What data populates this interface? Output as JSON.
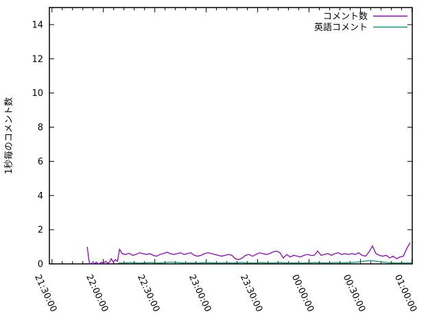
{
  "chart_data": {
    "type": "line",
    "title": "",
    "xlabel": "",
    "ylabel": "1秒毎のコメント数",
    "grid": false,
    "legend_position": "top-right-inside",
    "x_tick_labels": [
      "21:30:00",
      "22:00:00",
      "22:30:00",
      "23:00:00",
      "23:30:00",
      "00:00:00",
      "00:30:00",
      "01:00:00"
    ],
    "x_tick_minutes": [
      0,
      30,
      60,
      90,
      120,
      150,
      180,
      210
    ],
    "x_minor_step_minutes": 6,
    "xlim_minutes": [
      -1.5,
      210.2
    ],
    "y_tick_labels": [
      "0",
      "2",
      "4",
      "6",
      "8",
      "10",
      "12",
      "14"
    ],
    "y_tick_values": [
      0,
      2,
      4,
      6,
      8,
      10,
      12,
      14
    ],
    "ylim": [
      0,
      15
    ],
    "series": [
      {
        "name": "コメント数",
        "color": "#9400D3",
        "points": [
          [
            20.6,
            1.0
          ],
          [
            21.4,
            0.35
          ],
          [
            22,
            0
          ],
          [
            23,
            0.05
          ],
          [
            24,
            0
          ],
          [
            25,
            0.05
          ],
          [
            26,
            0.1
          ],
          [
            27,
            0
          ],
          [
            28.2,
            0.05
          ],
          [
            29,
            0.1
          ],
          [
            30,
            0.05
          ],
          [
            31.4,
            0.15
          ],
          [
            32.5,
            0.05
          ],
          [
            33.6,
            0.1
          ],
          [
            34.6,
            0.3
          ],
          [
            35.8,
            0.1
          ],
          [
            37,
            0.25
          ],
          [
            38.2,
            0.15
          ],
          [
            39.4,
            0.85
          ],
          [
            41,
            0.6
          ],
          [
            43,
            0.55
          ],
          [
            45,
            0.62
          ],
          [
            47,
            0.5
          ],
          [
            49,
            0.55
          ],
          [
            51,
            0.65
          ],
          [
            53,
            0.6
          ],
          [
            55,
            0.55
          ],
          [
            57,
            0.6
          ],
          [
            59,
            0.5
          ],
          [
            61,
            0.45
          ],
          [
            63,
            0.55
          ],
          [
            65,
            0.6
          ],
          [
            67,
            0.68
          ],
          [
            69,
            0.6
          ],
          [
            71,
            0.55
          ],
          [
            73,
            0.6
          ],
          [
            75,
            0.65
          ],
          [
            77,
            0.55
          ],
          [
            79,
            0.6
          ],
          [
            81,
            0.65
          ],
          [
            83,
            0.5
          ],
          [
            85,
            0.45
          ],
          [
            87,
            0.5
          ],
          [
            89,
            0.6
          ],
          [
            91,
            0.65
          ],
          [
            93,
            0.6
          ],
          [
            95,
            0.55
          ],
          [
            97,
            0.5
          ],
          [
            99,
            0.45
          ],
          [
            101,
            0.5
          ],
          [
            103,
            0.55
          ],
          [
            105,
            0.5
          ],
          [
            107,
            0.3
          ],
          [
            109,
            0.25
          ],
          [
            111,
            0.35
          ],
          [
            113,
            0.5
          ],
          [
            115,
            0.55
          ],
          [
            117,
            0.45
          ],
          [
            119,
            0.55
          ],
          [
            121,
            0.65
          ],
          [
            123,
            0.6
          ],
          [
            125,
            0.55
          ],
          [
            127,
            0.6
          ],
          [
            129,
            0.7
          ],
          [
            131,
            0.75
          ],
          [
            133,
            0.65
          ],
          [
            135,
            0.35
          ],
          [
            137,
            0.55
          ],
          [
            139,
            0.4
          ],
          [
            141,
            0.5
          ],
          [
            143,
            0.45
          ],
          [
            145,
            0.4
          ],
          [
            147,
            0.5
          ],
          [
            149,
            0.55
          ],
          [
            151,
            0.5
          ],
          [
            153,
            0.5
          ],
          [
            155,
            0.75
          ],
          [
            157,
            0.5
          ],
          [
            159,
            0.55
          ],
          [
            161,
            0.6
          ],
          [
            163,
            0.5
          ],
          [
            165,
            0.6
          ],
          [
            167,
            0.65
          ],
          [
            169,
            0.55
          ],
          [
            171,
            0.6
          ],
          [
            173,
            0.55
          ],
          [
            175,
            0.6
          ],
          [
            177,
            0.55
          ],
          [
            179,
            0.65
          ],
          [
            181,
            0.5
          ],
          [
            183,
            0.45
          ],
          [
            185,
            0.7
          ],
          [
            187,
            1.05
          ],
          [
            189,
            0.6
          ],
          [
            191,
            0.5
          ],
          [
            193,
            0.45
          ],
          [
            195,
            0.5
          ],
          [
            197,
            0.35
          ],
          [
            199,
            0.45
          ],
          [
            201,
            0.3
          ],
          [
            203,
            0.4
          ],
          [
            205,
            0.45
          ],
          [
            207,
            0.9
          ],
          [
            209,
            1.25
          ]
        ]
      },
      {
        "name": "英語コメント",
        "color": "#009E73",
        "points": [
          [
            38.6,
            0.05
          ],
          [
            41.8,
            0.05
          ],
          [
            45.8,
            0.08
          ],
          [
            49.8,
            0.05
          ],
          [
            53.8,
            0.06
          ],
          [
            57.8,
            0.08
          ],
          [
            61.8,
            0.05
          ],
          [
            65.8,
            0.08
          ],
          [
            69.8,
            0.1
          ],
          [
            73.8,
            0.08
          ],
          [
            77.8,
            0.05
          ],
          [
            81.8,
            0.06
          ],
          [
            85.8,
            0.05
          ],
          [
            89.8,
            0.08
          ],
          [
            93.8,
            0.06
          ],
          [
            97.8,
            0.05
          ],
          [
            101.8,
            0.06
          ],
          [
            105.8,
            0.05
          ],
          [
            109.8,
            0.08
          ],
          [
            113.8,
            0.06
          ],
          [
            117.8,
            0.05
          ],
          [
            121.8,
            0.08
          ],
          [
            125.8,
            0.05
          ],
          [
            129.8,
            0.06
          ],
          [
            133.8,
            0.08
          ],
          [
            137.8,
            0.05
          ],
          [
            141.8,
            0.06
          ],
          [
            145.8,
            0.05
          ],
          [
            149.8,
            0.06
          ],
          [
            153.8,
            0.08
          ],
          [
            157.8,
            0.06
          ],
          [
            161.8,
            0.05
          ],
          [
            165.8,
            0.08
          ],
          [
            169.8,
            0.06
          ],
          [
            173.8,
            0.08
          ],
          [
            177.8,
            0.1
          ],
          [
            181.8,
            0.15
          ],
          [
            185.8,
            0.2
          ],
          [
            189.8,
            0.15
          ],
          [
            193.8,
            0.1
          ],
          [
            197.8,
            0.06
          ],
          [
            201.8,
            0.05
          ],
          [
            205.8,
            0.06
          ],
          [
            209.8,
            0.05
          ]
        ]
      }
    ]
  },
  "colors": {
    "background": "#ffffff",
    "border": "#000000",
    "tick": "#000000",
    "series1": "#9400D3",
    "series2": "#009E73"
  }
}
